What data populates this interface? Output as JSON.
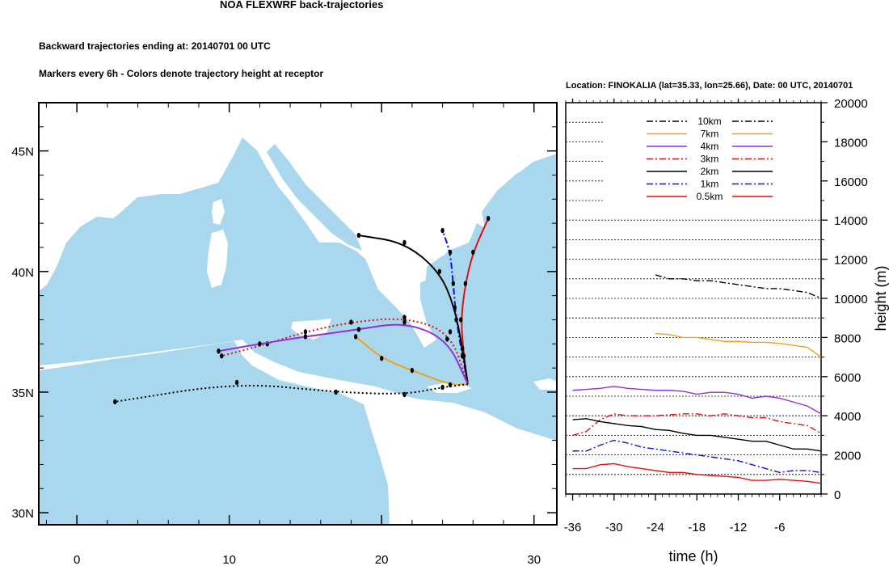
{
  "title": "NOA FLEXWRF back-trajectories",
  "subtitle1": "Backward trajectories ending at: 20140701  00 UTC",
  "subtitle2": "Markers every 6h - Colors denote trajectory height at receptor",
  "location_label": "Location: FINOKALIA (lat=35.33,  lon=25.66), Date: 00 UTC, 20140701",
  "colors": {
    "sea": "#a9d8ee",
    "land": "#ffffff",
    "h10km": "#000000",
    "h7km": "#f0a020",
    "h4km": "#9030d8",
    "h3km": "#e01010",
    "h2km": "#000000",
    "h1km": "#1010e0",
    "h05km": "#e01010"
  },
  "chart_data": [
    {
      "type": "map-trajectories",
      "lon_ticks": [
        "0",
        "10",
        "20",
        "30"
      ],
      "lat_ticks": [
        "30N",
        "35N",
        "40N",
        "45N"
      ],
      "lon_range": [
        -2.5,
        31.5
      ],
      "lat_range": [
        29.5,
        47
      ],
      "receptor": {
        "lon": 25.66,
        "lat": 35.33
      },
      "trajectories": [
        {
          "name": "0.5km",
          "color": "#e01010",
          "dash": "solid",
          "points": [
            [
              25.66,
              35.33
            ],
            [
              25.4,
              36.5
            ],
            [
              25.2,
              38.0
            ],
            [
              25.5,
              39.5
            ],
            [
              26.0,
              40.8
            ],
            [
              27.0,
              42.2
            ]
          ]
        },
        {
          "name": "1km",
          "color": "#1010e0",
          "dash": "dashdot",
          "points": [
            [
              25.66,
              35.33
            ],
            [
              25.3,
              36.5
            ],
            [
              24.9,
              38.0
            ],
            [
              24.7,
              39.5
            ],
            [
              24.5,
              40.8
            ],
            [
              24.0,
              41.7
            ]
          ]
        },
        {
          "name": "2km",
          "color": "#000000",
          "dash": "solid",
          "points": [
            [
              25.66,
              35.33
            ],
            [
              25.3,
              36.8
            ],
            [
              24.8,
              38.5
            ],
            [
              23.8,
              40.0
            ],
            [
              21.5,
              41.2
            ],
            [
              18.5,
              41.5
            ]
          ]
        },
        {
          "name": "3km",
          "color": "#e01010",
          "dash": "dotted",
          "points": [
            [
              25.66,
              35.33
            ],
            [
              24.5,
              37.5
            ],
            [
              21.5,
              38.1
            ],
            [
              18.0,
              37.9
            ],
            [
              15.0,
              37.5
            ],
            [
              12.5,
              37.0
            ],
            [
              9.5,
              36.5
            ]
          ]
        },
        {
          "name": "4km",
          "color": "#9030d8",
          "dash": "solid",
          "points": [
            [
              25.66,
              35.33
            ],
            [
              24.3,
              37.2
            ],
            [
              21.5,
              37.9
            ],
            [
              18.5,
              37.6
            ],
            [
              15.0,
              37.3
            ],
            [
              12.0,
              37.0
            ],
            [
              9.3,
              36.7
            ]
          ]
        },
        {
          "name": "7km",
          "color": "#f0a020",
          "dash": "solid",
          "points": [
            [
              25.66,
              35.33
            ],
            [
              24.5,
              35.3
            ],
            [
              22.0,
              35.9
            ],
            [
              20.0,
              36.4
            ],
            [
              18.3,
              37.3
            ]
          ]
        },
        {
          "name": "10km",
          "color": "#000000",
          "dash": "dotted",
          "points": [
            [
              25.66,
              35.33
            ],
            [
              24.0,
              35.2
            ],
            [
              21.5,
              34.9
            ],
            [
              17.0,
              35.0
            ],
            [
              10.5,
              35.4
            ],
            [
              2.5,
              34.6
            ]
          ]
        }
      ]
    },
    {
      "type": "line",
      "xlabel": "time (h)",
      "ylabel": "height (m)",
      "x_ticks": [
        -36,
        -30,
        -24,
        -18,
        -12,
        -6
      ],
      "y_ticks": [
        0,
        2000,
        4000,
        6000,
        8000,
        10000,
        12000,
        14000,
        16000,
        18000,
        20000
      ],
      "xlim": [
        -37,
        0
      ],
      "ylim": [
        0,
        20000
      ],
      "series": [
        {
          "name": "10km",
          "color": "#000000",
          "dash": "dashdot",
          "x": [
            -24,
            -22,
            -20,
            -18,
            -16,
            -14,
            -12,
            -10,
            -8,
            -6,
            -4,
            -2,
            0
          ],
          "y": [
            11200,
            11000,
            11000,
            10900,
            10900,
            10800,
            10700,
            10600,
            10500,
            10500,
            10400,
            10300,
            10000
          ]
        },
        {
          "name": "7km",
          "color": "#f0a020",
          "dash": "solid",
          "x": [
            -24,
            -22,
            -20,
            -18,
            -16,
            -14,
            -12,
            -10,
            -8,
            -6,
            -4,
            -2,
            0
          ],
          "y": [
            8200,
            8150,
            8000,
            8000,
            7900,
            7800,
            7800,
            7750,
            7750,
            7700,
            7600,
            7500,
            7000
          ]
        },
        {
          "name": "4km",
          "color": "#9030d8",
          "dash": "solid",
          "x": [
            -36,
            -34,
            -32,
            -30,
            -28,
            -26,
            -24,
            -22,
            -20,
            -18,
            -16,
            -14,
            -12,
            -10,
            -8,
            -6,
            -4,
            -2,
            0
          ],
          "y": [
            5300,
            5350,
            5400,
            5500,
            5400,
            5350,
            5300,
            5300,
            5250,
            5100,
            5200,
            5200,
            5100,
            4900,
            5000,
            4900,
            4700,
            4500,
            4100
          ]
        },
        {
          "name": "3km",
          "color": "#e01010",
          "dash": "dashdot",
          "x": [
            -36,
            -34,
            -32,
            -30,
            -28,
            -26,
            -24,
            -22,
            -20,
            -18,
            -16,
            -14,
            -12,
            -10,
            -8,
            -6,
            -4,
            -2,
            0
          ],
          "y": [
            3000,
            3200,
            3800,
            4100,
            4000,
            4000,
            4000,
            4050,
            4100,
            4100,
            4000,
            4100,
            4000,
            3900,
            3900,
            3700,
            3600,
            3500,
            3100
          ]
        },
        {
          "name": "2km",
          "color": "#000000",
          "dash": "solid",
          "x": [
            -36,
            -34,
            -32,
            -30,
            -28,
            -26,
            -24,
            -22,
            -20,
            -18,
            -16,
            -14,
            -12,
            -10,
            -8,
            -6,
            -4,
            -2,
            0
          ],
          "y": [
            3800,
            3850,
            3700,
            3600,
            3500,
            3450,
            3300,
            3250,
            3100,
            3000,
            3000,
            2900,
            2800,
            2700,
            2700,
            2500,
            2300,
            2300,
            2200
          ]
        },
        {
          "name": "1km",
          "color": "#1010e0",
          "dash": "dashdot",
          "x": [
            -36,
            -34,
            -32,
            -30,
            -28,
            -26,
            -24,
            -22,
            -20,
            -18,
            -16,
            -14,
            -12,
            -10,
            -8,
            -6,
            -4,
            -2,
            0
          ],
          "y": [
            2200,
            2200,
            2500,
            2750,
            2600,
            2400,
            2300,
            2200,
            2100,
            2000,
            1900,
            1800,
            1700,
            1500,
            1300,
            1100,
            1200,
            1200,
            1100
          ]
        },
        {
          "name": "0.5km",
          "color": "#e01010",
          "dash": "solid",
          "x": [
            -36,
            -34,
            -32,
            -30,
            -28,
            -26,
            -24,
            -22,
            -20,
            -18,
            -16,
            -14,
            -12,
            -10,
            -8,
            -6,
            -4,
            -2,
            0
          ],
          "y": [
            1300,
            1300,
            1500,
            1550,
            1400,
            1300,
            1200,
            1100,
            1100,
            1000,
            950,
            900,
            850,
            700,
            700,
            750,
            700,
            650,
            550
          ]
        }
      ]
    }
  ]
}
